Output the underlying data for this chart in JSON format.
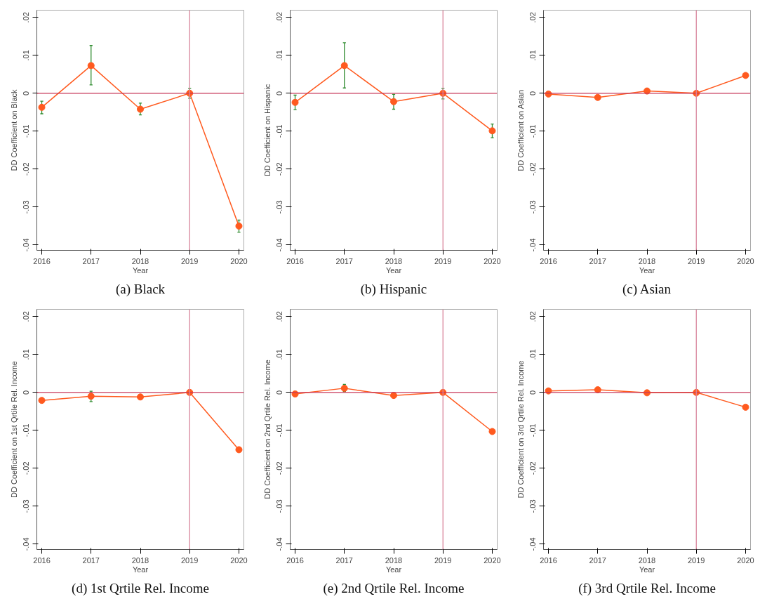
{
  "chart_data": [
    {
      "type": "line",
      "title": "(a) Black",
      "xlabel": "Year",
      "ylabel": "DD Coefficient on Black",
      "x": [
        2016,
        2017,
        2018,
        2019,
        2020
      ],
      "xlim": [
        2015.9,
        2020.1
      ],
      "xticks": [
        2016,
        2017,
        2018,
        2019,
        2020
      ],
      "ylim": [
        -0.0414,
        0.0219
      ],
      "yticks": [
        {
          "value": 0.02,
          "label": ".02"
        },
        {
          "value": 0.01,
          "label": ".01"
        },
        0,
        {
          "value": -0.01,
          "label": "-.01"
        },
        {
          "value": -0.02,
          "label": "-.02"
        },
        {
          "value": -0.03,
          "label": "-.03"
        },
        {
          "value": -0.04,
          "label": "-.04"
        }
      ],
      "marker": "circle",
      "grid": false,
      "ref_lines": [
        {
          "axis": "y",
          "value": 0,
          "color": "#c8385a"
        },
        {
          "axis": "x",
          "value": 2019,
          "color": "#d9869d"
        }
      ],
      "series": [
        {
          "color": "#ff5a1f",
          "values": [
            -0.0037,
            0.0073,
            -0.0042,
            0,
            -0.035
          ],
          "errors": [
            [
              -0.0054,
              -0.0021
            ],
            [
              0.0022,
              0.0126
            ],
            [
              -0.0057,
              -0.0026
            ],
            [
              -0.0013,
              0.0013
            ],
            [
              -0.0366,
              -0.0334
            ]
          ]
        }
      ]
    },
    {
      "type": "line",
      "title": "(b) Hispanic",
      "xlabel": "Year",
      "ylabel": "DD Coefficient on Hispanic",
      "x": [
        2016,
        2017,
        2018,
        2019,
        2020
      ],
      "xlim": [
        2015.9,
        2020.1
      ],
      "xticks": [
        2016,
        2017,
        2018,
        2019,
        2020
      ],
      "ylim": [
        -0.0414,
        0.0219
      ],
      "yticks": [
        {
          "value": 0.02,
          "label": ".02"
        },
        {
          "value": 0.01,
          "label": ".01"
        },
        0,
        {
          "value": -0.01,
          "label": "-.01"
        },
        {
          "value": -0.02,
          "label": "-.02"
        },
        {
          "value": -0.03,
          "label": "-.03"
        },
        {
          "value": -0.04,
          "label": "-.04"
        }
      ],
      "marker": "circle",
      "grid": false,
      "ref_lines": [
        {
          "axis": "y",
          "value": 0,
          "color": "#c8385a"
        },
        {
          "axis": "x",
          "value": 2019,
          "color": "#d9869d"
        }
      ],
      "series": [
        {
          "color": "#ff5a1f",
          "values": [
            -0.0024,
            0.0073,
            -0.0022,
            0,
            -0.0099
          ],
          "errors": [
            [
              -0.0043,
              -0.0005
            ],
            [
              0.0014,
              0.0133
            ],
            [
              -0.0042,
              -0.0003
            ],
            [
              -0.0015,
              0.0013
            ],
            [
              -0.0117,
              -0.0081
            ]
          ]
        }
      ]
    },
    {
      "type": "line",
      "title": "(c) Asian",
      "xlabel": "Year",
      "ylabel": "DD Coefficient on Asian",
      "x": [
        2016,
        2017,
        2018,
        2019,
        2020
      ],
      "xlim": [
        2015.9,
        2020.1
      ],
      "xticks": [
        2016,
        2017,
        2018,
        2019,
        2020
      ],
      "ylim": [
        -0.0414,
        0.0219
      ],
      "yticks": [
        {
          "value": 0.02,
          "label": ".02"
        },
        {
          "value": 0.01,
          "label": ".01"
        },
        0,
        {
          "value": -0.01,
          "label": "-.01"
        },
        {
          "value": -0.02,
          "label": "-.02"
        },
        {
          "value": -0.03,
          "label": "-.03"
        },
        {
          "value": -0.04,
          "label": "-.04"
        }
      ],
      "marker": "circle",
      "grid": false,
      "ref_lines": [
        {
          "axis": "y",
          "value": 0,
          "color": "#c8385a"
        },
        {
          "axis": "x",
          "value": 2019,
          "color": "#d9869d"
        }
      ],
      "series": [
        {
          "color": "#ff5a1f",
          "values": [
            -0.0002,
            -0.0011,
            0.0006,
            0,
            0.0047
          ],
          "errors": [
            null,
            null,
            null,
            null,
            null
          ]
        }
      ]
    },
    {
      "type": "line",
      "title": "(d) 1st Qrtile Rel. Income",
      "xlabel": "Year",
      "ylabel": "DD Coefficient on 1st Qrtile Rel. Income",
      "x": [
        2016,
        2017,
        2018,
        2019,
        2020
      ],
      "xlim": [
        2015.9,
        2020.1
      ],
      "xticks": [
        2016,
        2017,
        2018,
        2019,
        2020
      ],
      "ylim": [
        -0.0414,
        0.0219
      ],
      "yticks": [
        {
          "value": 0.02,
          "label": ".02"
        },
        {
          "value": 0.01,
          "label": ".01"
        },
        0,
        {
          "value": -0.01,
          "label": "-.01"
        },
        {
          "value": -0.02,
          "label": "-.02"
        },
        {
          "value": -0.03,
          "label": "-.03"
        },
        {
          "value": -0.04,
          "label": "-.04"
        }
      ],
      "marker": "circle",
      "grid": false,
      "ref_lines": [
        {
          "axis": "y",
          "value": 0,
          "color": "#c8385a"
        },
        {
          "axis": "x",
          "value": 2019,
          "color": "#d9869d"
        }
      ],
      "series": [
        {
          "color": "#ff5a1f",
          "values": [
            -0.0021,
            -0.001,
            -0.0012,
            0,
            -0.0151
          ],
          "errors": [
            null,
            [
              -0.0024,
              0.0003
            ],
            null,
            null,
            null
          ]
        }
      ]
    },
    {
      "type": "line",
      "title": "(e) 2nd Qrtile Rel. Income",
      "xlabel": "Year",
      "ylabel": "DD Coefficient on 2nd Qrtile Rel. Income",
      "x": [
        2016,
        2017,
        2018,
        2019,
        2020
      ],
      "xlim": [
        2015.9,
        2020.1
      ],
      "xticks": [
        2016,
        2017,
        2018,
        2019,
        2020
      ],
      "ylim": [
        -0.0414,
        0.0219
      ],
      "yticks": [
        {
          "value": 0.02,
          "label": ".02"
        },
        {
          "value": 0.01,
          "label": ".01"
        },
        0,
        {
          "value": -0.01,
          "label": "-.01"
        },
        {
          "value": -0.02,
          "label": "-.02"
        },
        {
          "value": -0.03,
          "label": "-.03"
        },
        {
          "value": -0.04,
          "label": "-.04"
        }
      ],
      "marker": "circle",
      "grid": false,
      "ref_lines": [
        {
          "axis": "y",
          "value": 0,
          "color": "#c8385a"
        },
        {
          "axis": "x",
          "value": 2019,
          "color": "#d9869d"
        }
      ],
      "series": [
        {
          "color": "#ff5a1f",
          "values": [
            -0.0004,
            0.0011,
            -0.0008,
            0,
            -0.0103
          ],
          "errors": [
            null,
            [
              0.0002,
              0.0021
            ],
            null,
            null,
            null
          ]
        }
      ]
    },
    {
      "type": "line",
      "title": "(f) 3rd Qrtile Rel. Income",
      "xlabel": "Year",
      "ylabel": "DD Coefficient on 3rd Qrtile Rel. Income",
      "x": [
        2016,
        2017,
        2018,
        2019,
        2020
      ],
      "xlim": [
        2015.9,
        2020.1
      ],
      "xticks": [
        2016,
        2017,
        2018,
        2019,
        2020
      ],
      "ylim": [
        -0.0414,
        0.0219
      ],
      "yticks": [
        {
          "value": 0.02,
          "label": ".02"
        },
        {
          "value": 0.01,
          "label": ".01"
        },
        0,
        {
          "value": -0.01,
          "label": "-.01"
        },
        {
          "value": -0.02,
          "label": "-.02"
        },
        {
          "value": -0.03,
          "label": "-.03"
        },
        {
          "value": -0.04,
          "label": "-.04"
        }
      ],
      "marker": "circle",
      "grid": false,
      "ref_lines": [
        {
          "axis": "y",
          "value": 0,
          "color": "#c8385a"
        },
        {
          "axis": "x",
          "value": 2019,
          "color": "#d9869d"
        }
      ],
      "series": [
        {
          "color": "#ff5a1f",
          "values": [
            0.0004,
            0.0007,
            -0.0001,
            0,
            -0.0039
          ]
        }
      ]
    }
  ]
}
